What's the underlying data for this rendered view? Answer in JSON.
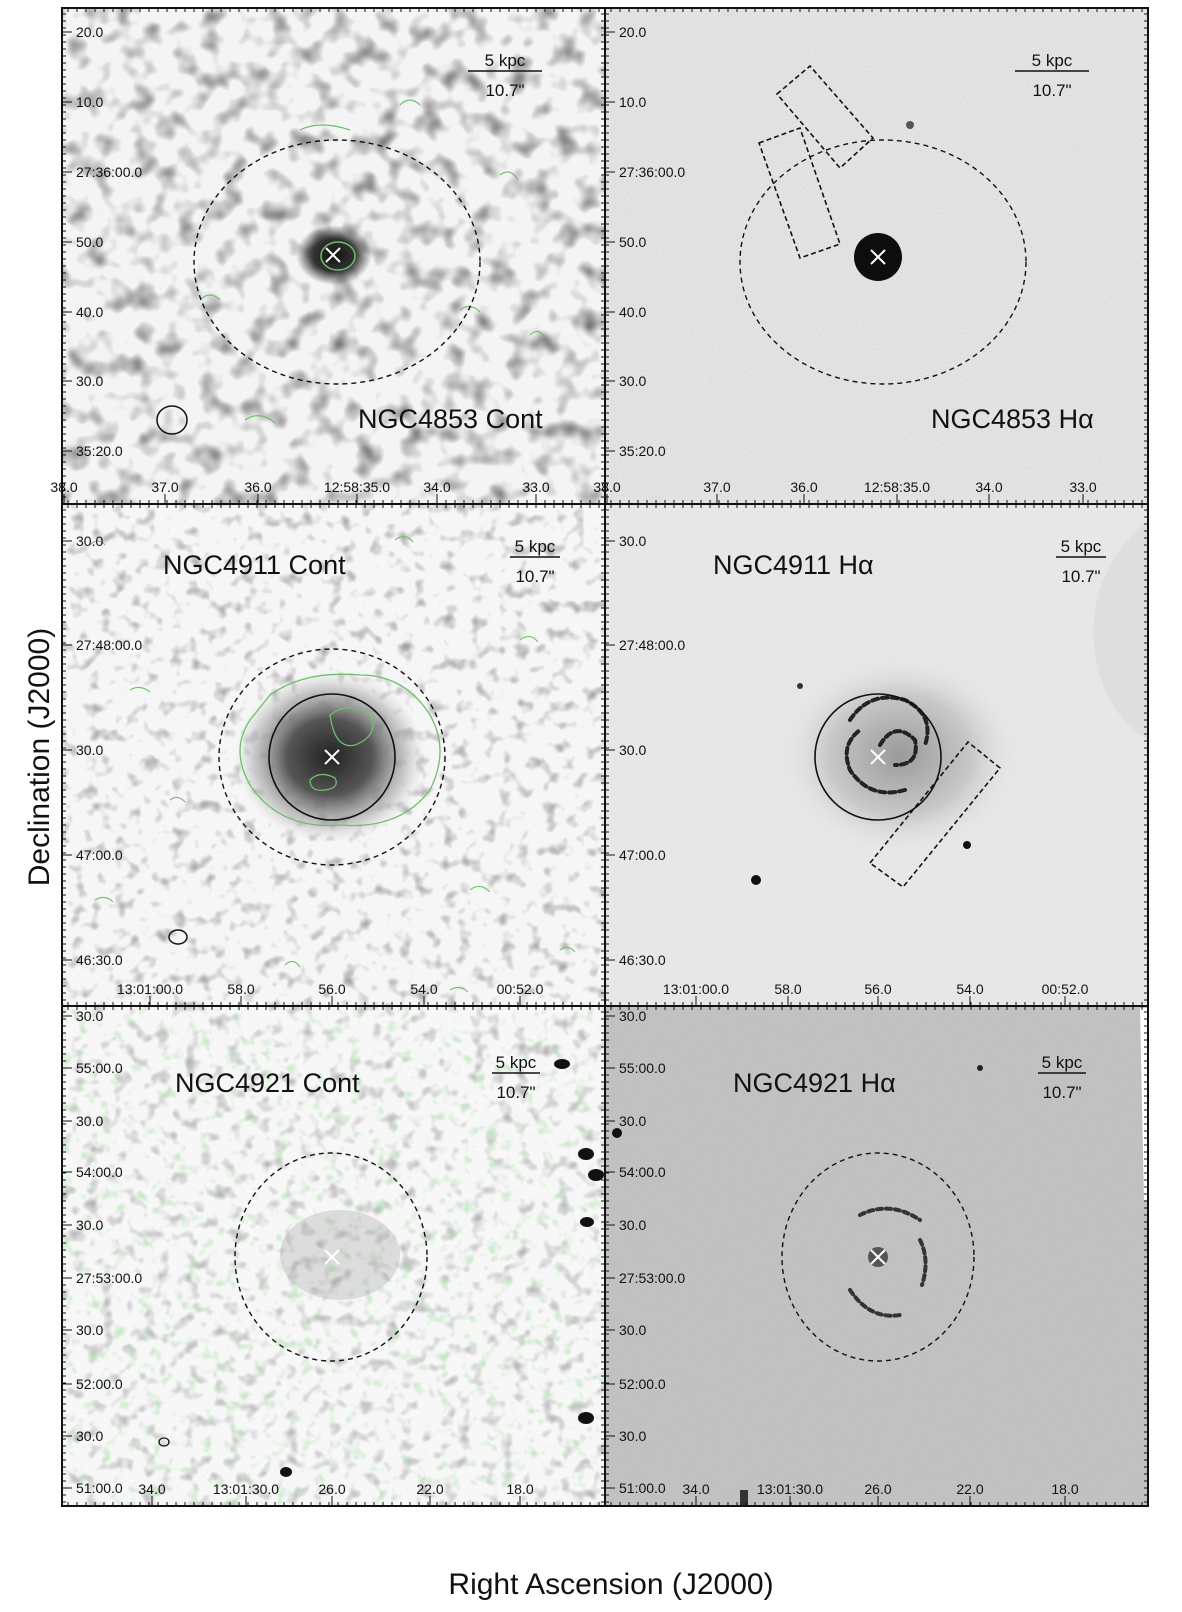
{
  "figure": {
    "xlabel": "Right Ascension (J2000)",
    "ylabel": "Declination (J2000)",
    "colors": {
      "contour": "#6fbf6a",
      "frame": "#111111",
      "background_light": "#ffffff",
      "background_gray": "#d9d9d9"
    }
  },
  "panels": [
    {
      "id": "ngc4853-cont",
      "label": "NGC4853 Cont",
      "scalebar_top": "5 kpc",
      "scalebar_bottom": "10.7\"",
      "dec_ticks": [
        "20.0",
        "10.0",
        "27:36:00.0",
        "50.0",
        "40.0",
        "30.0",
        "35:20.0"
      ],
      "ra_ticks": [
        "38.0",
        "37.0",
        "36.0",
        "12:58:35.0",
        "34.0",
        "33.0"
      ],
      "has_beam": true,
      "has_solid_circle": false,
      "has_boxes": false
    },
    {
      "id": "ngc4853-ha",
      "label": "NGC4853 Hα",
      "scalebar_top": "5 kpc",
      "scalebar_bottom": "10.7\"",
      "dec_ticks": [
        "20.0",
        "10.0",
        "27:36:00.0",
        "50.0",
        "40.0",
        "30.0",
        "35:20.0"
      ],
      "ra_ticks": [
        "38.0",
        "37.0",
        "36.0",
        "12:58:35.0",
        "34.0",
        "33.0"
      ],
      "has_beam": false,
      "has_solid_circle": false,
      "has_boxes": true
    },
    {
      "id": "ngc4911-cont",
      "label": "NGC4911 Cont",
      "scalebar_top": "5 kpc",
      "scalebar_bottom": "10.7\"",
      "dec_ticks": [
        "30.0",
        "27:48:00.0",
        "30.0",
        "47:00.0",
        "46:30.0"
      ],
      "ra_ticks": [
        "13:01:00.0",
        "58.0",
        "56.0",
        "54.0",
        "00:52.0"
      ],
      "has_beam": true,
      "has_solid_circle": true,
      "has_boxes": false
    },
    {
      "id": "ngc4911-ha",
      "label": "NGC4911 Hα",
      "scalebar_top": "5 kpc",
      "scalebar_bottom": "10.7\"",
      "dec_ticks": [
        "30.0",
        "27:48:00.0",
        "30.0",
        "47:00.0",
        "46:30.0"
      ],
      "ra_ticks": [
        "13:01:00.0",
        "58.0",
        "56.0",
        "54.0",
        "00:52.0"
      ],
      "has_beam": false,
      "has_solid_circle": true,
      "has_boxes": true
    },
    {
      "id": "ngc4921-cont",
      "label": "NGC4921 Cont",
      "scalebar_top": "5 kpc",
      "scalebar_bottom": "10.7\"",
      "dec_ticks": [
        "30.0",
        "55:00.0",
        "30.0",
        "54:00.0",
        "30.0",
        "27:53:00.0",
        "30.0",
        "52:00.0",
        "30.0",
        "51:00.0"
      ],
      "ra_ticks": [
        "34.0",
        "13:01:30.0",
        "26.0",
        "22.0",
        "18.0"
      ],
      "has_beam": true,
      "has_solid_circle": false,
      "has_boxes": false
    },
    {
      "id": "ngc4921-ha",
      "label": "NGC4921 Hα",
      "scalebar_top": "5 kpc",
      "scalebar_bottom": "10.7\"",
      "dec_ticks": [
        "30.0",
        "55:00.0",
        "30.0",
        "54:00.0",
        "30.0",
        "27:53:00.0",
        "30.0",
        "52:00.0",
        "30.0",
        "51:00.0"
      ],
      "ra_ticks": [
        "34.0",
        "13:01:30.0",
        "26.0",
        "22.0",
        "18.0"
      ],
      "has_beam": false,
      "has_solid_circle": false,
      "has_boxes": false
    }
  ]
}
